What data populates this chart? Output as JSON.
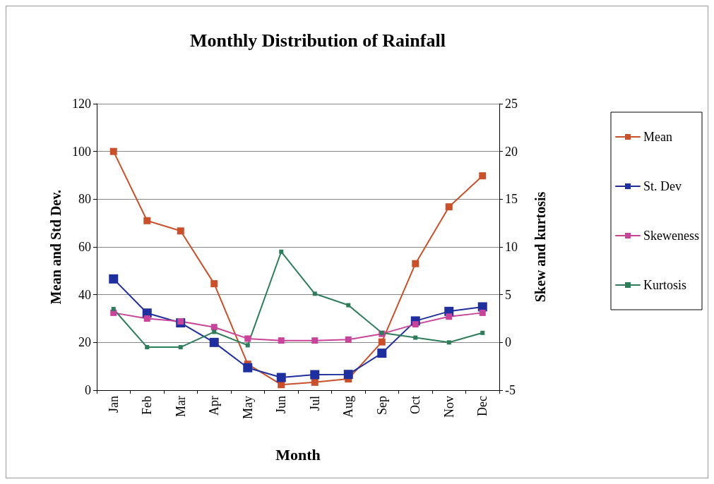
{
  "chart_data": {
    "type": "line",
    "title": "Monthly Distribution of Rainfall",
    "xlabel": "Month",
    "ylabel": "Mean and Std Dev.",
    "y2label": "Skew and kurtosis",
    "categories": [
      "Jan",
      "Feb",
      "Mar",
      "Apr",
      "May",
      "Jun",
      "Jul",
      "Aug",
      "Sep",
      "Oct",
      "Nov",
      "Dec"
    ],
    "series": [
      {
        "name": "Mean",
        "color": "#c8502a",
        "values": [
          100,
          71,
          66.7,
          44.6,
          10.9,
          2.3,
          3.3,
          4.7,
          20.2,
          53,
          76.8,
          89.8
        ]
      },
      {
        "name": "St. Dev",
        "color": "#1f2f9e",
        "values": [
          46.6,
          32.3,
          28.2,
          20,
          9.4,
          5.3,
          6.5,
          6.6,
          15.5,
          29,
          33,
          34.9
        ]
      },
      {
        "name": "Skeweness",
        "color": "#c8449a",
        "axis": "y2",
        "values": [
          3.1,
          2.5,
          2.2,
          1.6,
          0.4,
          0.2,
          0.2,
          0.3,
          0.9,
          1.9,
          2.7,
          3.1
        ]
      },
      {
        "name": "Kurtosis",
        "color": "#2e7d5a",
        "axis": "y2",
        "values": [
          3.5,
          -0.5,
          -0.5,
          1.1,
          -0.3,
          9.5,
          5.1,
          3.9,
          1.0,
          0.5,
          0,
          1.0
        ]
      }
    ],
    "ylim": [
      0,
      120
    ],
    "yticks": [
      0,
      20,
      40,
      60,
      80,
      100,
      120
    ],
    "y2lim": [
      -5,
      25
    ],
    "y2ticks": [
      -5,
      0,
      5,
      10,
      15,
      20,
      25
    ],
    "grid": "y",
    "legend": "right",
    "marker": "square",
    "line_style": "solid"
  }
}
